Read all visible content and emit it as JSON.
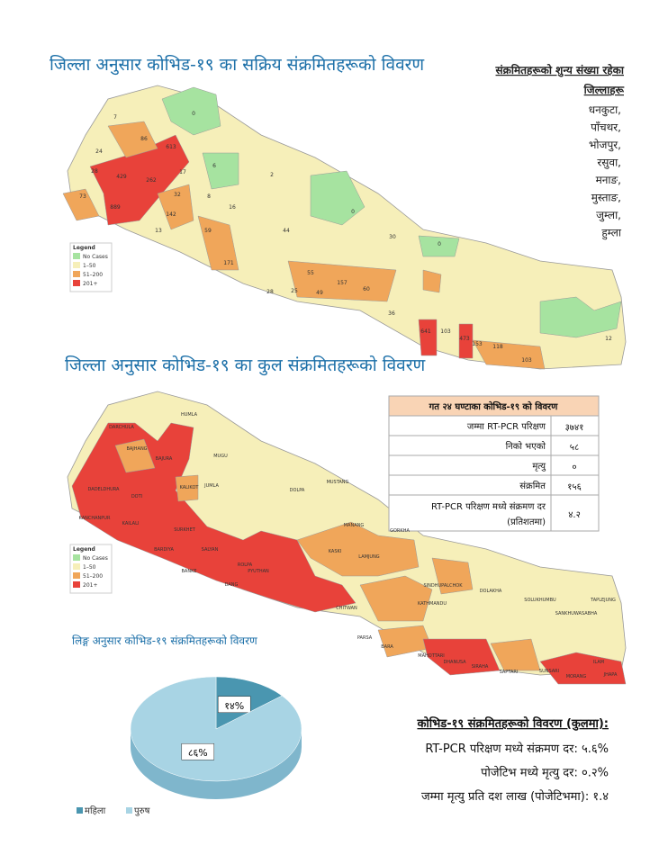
{
  "map1": {
    "title": "जिल्ला अनुसार कोभिड-१९ का सक्रिय संक्रमितहरूको विवरण",
    "labels": [
      "0",
      "7",
      "86",
      "613",
      "24",
      "28",
      "429",
      "262",
      "17",
      "73",
      "889",
      "32",
      "142",
      "6",
      "2",
      "8",
      "16",
      "59",
      "171",
      "13",
      "0",
      "44",
      "30",
      "55",
      "157",
      "60",
      "49",
      "25",
      "28",
      "0",
      "641",
      "103",
      "473",
      "153",
      "118",
      "103",
      "36",
      "12"
    ]
  },
  "map2": {
    "title": "जिल्ला अनुसार कोभिड-१९ का कुल संक्रमितहरूको विवरण",
    "labels": [
      "HUMLA",
      "DARCHULA",
      "BAJHANG",
      "BAJURA",
      "MUGU",
      "JUMLA",
      "DOLPA",
      "KALIKOT",
      "KAILALI",
      "KANCHANPUR",
      "DADELDHURA",
      "DOTI",
      "BARDIYA",
      "SURKHET",
      "BANKE",
      "DANG",
      "SALYAN",
      "ROLPA",
      "PYUTHAN",
      "MUSTANG",
      "MANANG",
      "GORKHA",
      "KASKI",
      "LAMJUNG",
      "CHITWAN",
      "KATHMANDU",
      "SINDHUPALCHOK",
      "DOLAKHA",
      "SOLUKHUMBU",
      "SANKHUWASABHA",
      "TAPLEJUNG",
      "ILAM",
      "JHAPA",
      "MORANG",
      "SUNSARI",
      "SAPTARI",
      "SIRAHA",
      "DHANUSA",
      "MAHOTTARI",
      "BARA",
      "PARSA"
    ]
  },
  "legend": {
    "title": "Legend",
    "items": [
      "No Cases",
      "1–50",
      "51–200",
      "201+"
    ]
  },
  "zero_districts": {
    "heading": [
      "संक्रमितहरूको शुन्य संख्या रहेका",
      "जिल्लाहरू"
    ],
    "items": [
      "धनकुटा,",
      "पाँचथर,",
      "भोजपुर,",
      "रसुवा,",
      "मनाङ,",
      "मुस्ताङ,",
      "जुम्ला,",
      "हुम्ला"
    ]
  },
  "table": {
    "title": "गत २४ घण्टाका कोभिड-१९ को विवरण",
    "rows": [
      [
        "जम्मा RT-PCR परिक्षण",
        "३७४१"
      ],
      [
        "निको भएको",
        "५८"
      ],
      [
        "मृत्यु",
        "०"
      ],
      [
        "संक्रमित",
        "१५६"
      ],
      [
        "RT-PCR परिक्षण मध्ये संक्रमण दर (प्रतिशतमा)",
        "४.२"
      ]
    ]
  },
  "gender_chart": {
    "type": "pie",
    "title": "लिङ्ग अनुसार कोभिड-१९ संक्रमितहरूको विवरण",
    "categories": [
      "महिला",
      "पुरुष"
    ],
    "values": [
      14,
      86
    ],
    "value_labels": [
      "१४%",
      "८६%"
    ],
    "colors": [
      "#4a96b0",
      "#a8d4e4"
    ]
  },
  "summary": {
    "heading": "कोभिड-१९ संक्रमितहरूको विवरण (कुलमा):",
    "lines": [
      "RT-PCR परिक्षण मध्ये संक्रमण दर: ५.६%",
      "पोजेटिभ मध्ये मृत्यु दर: ०.२%",
      "जम्मा मृत्यु प्रति दश लाख (पोजेटिभमा): १.४"
    ]
  }
}
